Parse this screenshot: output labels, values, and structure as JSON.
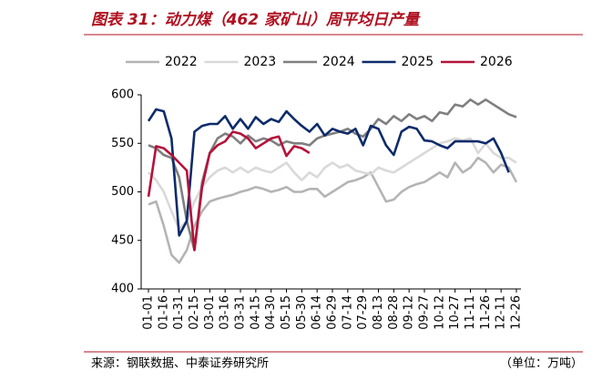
{
  "chart_data": {
    "type": "line",
    "title": "图表 31：动力煤（462 家矿山）周平均日产量",
    "source": "来源：钢联数据、中泰证券研究所",
    "unit_note": "（单位：万吨）",
    "categories": [
      "01-01",
      null,
      "01-16",
      null,
      "01-31",
      null,
      "02-15",
      null,
      "03-01",
      null,
      "03-16",
      null,
      "03-31",
      null,
      "04-15",
      null,
      "04-30",
      null,
      "05-15",
      null,
      "05-30",
      null,
      "06-14",
      null,
      "06-29",
      null,
      "07-14",
      null,
      "07-29",
      null,
      "08-13",
      null,
      "08-28",
      null,
      "09-12",
      null,
      "09-27",
      null,
      "10-12",
      null,
      "10-27",
      null,
      "11-11",
      null,
      "11-26",
      null,
      "12-11",
      null,
      "12-26"
    ],
    "ylim": [
      400,
      600
    ],
    "yticks": [
      400,
      450,
      500,
      550,
      600
    ],
    "series": [
      {
        "name": "2022",
        "color": "#b4b4b4",
        "values": [
          487,
          490,
          465,
          435,
          427,
          440,
          465,
          480,
          490,
          493,
          495,
          497,
          500,
          502,
          505,
          503,
          500,
          502,
          505,
          500,
          500,
          503,
          503,
          495,
          500,
          505,
          510,
          512,
          515,
          520,
          505,
          490,
          492,
          500,
          505,
          508,
          510,
          515,
          520,
          515,
          530,
          520,
          525,
          535,
          530,
          520,
          528,
          525,
          510
        ]
      },
      {
        "name": "2023",
        "color": "#d9d9d9",
        "values": [
          520,
          512,
          500,
          480,
          462,
          470,
          490,
          505,
          515,
          522,
          525,
          520,
          525,
          520,
          525,
          522,
          520,
          525,
          530,
          520,
          512,
          520,
          515,
          525,
          530,
          525,
          528,
          522,
          520,
          518,
          525,
          522,
          520,
          525,
          530,
          535,
          540,
          545,
          550,
          552,
          555,
          553,
          555,
          540,
          550,
          540,
          535,
          535,
          530
        ]
      },
      {
        "name": "2024",
        "color": "#7f7f7f",
        "values": [
          548,
          545,
          538,
          535,
          515,
          470,
          440,
          510,
          540,
          555,
          560,
          557,
          550,
          558,
          552,
          555,
          553,
          548,
          552,
          550,
          550,
          548,
          555,
          558,
          560,
          562,
          565,
          560,
          557,
          565,
          575,
          570,
          578,
          573,
          580,
          575,
          578,
          573,
          582,
          580,
          590,
          588,
          595,
          590,
          595,
          590,
          585,
          580,
          577
        ]
      },
      {
        "name": "2025",
        "color": "#0d2b6b",
        "values": [
          573,
          585,
          583,
          555,
          455,
          470,
          562,
          568,
          570,
          570,
          578,
          565,
          575,
          565,
          577,
          570,
          575,
          572,
          583,
          575,
          568,
          562,
          570,
          558,
          565,
          562,
          560,
          565,
          548,
          568,
          565,
          548,
          538,
          562,
          567,
          565,
          553,
          552,
          548,
          545,
          552,
          552,
          552,
          552,
          550,
          555,
          540,
          520,
          null
        ]
      },
      {
        "name": "2026",
        "color": "#b5123a",
        "values": [
          495,
          547,
          545,
          538,
          530,
          522,
          440,
          505,
          540,
          548,
          552,
          562,
          560,
          555,
          545,
          550,
          555,
          557,
          537,
          547,
          545,
          540,
          null,
          null,
          null,
          null,
          null,
          null,
          null,
          null,
          null,
          null,
          null,
          null,
          null,
          null,
          null,
          null,
          null,
          null,
          null,
          null,
          null,
          null,
          null,
          null,
          null,
          null,
          null
        ]
      }
    ]
  }
}
